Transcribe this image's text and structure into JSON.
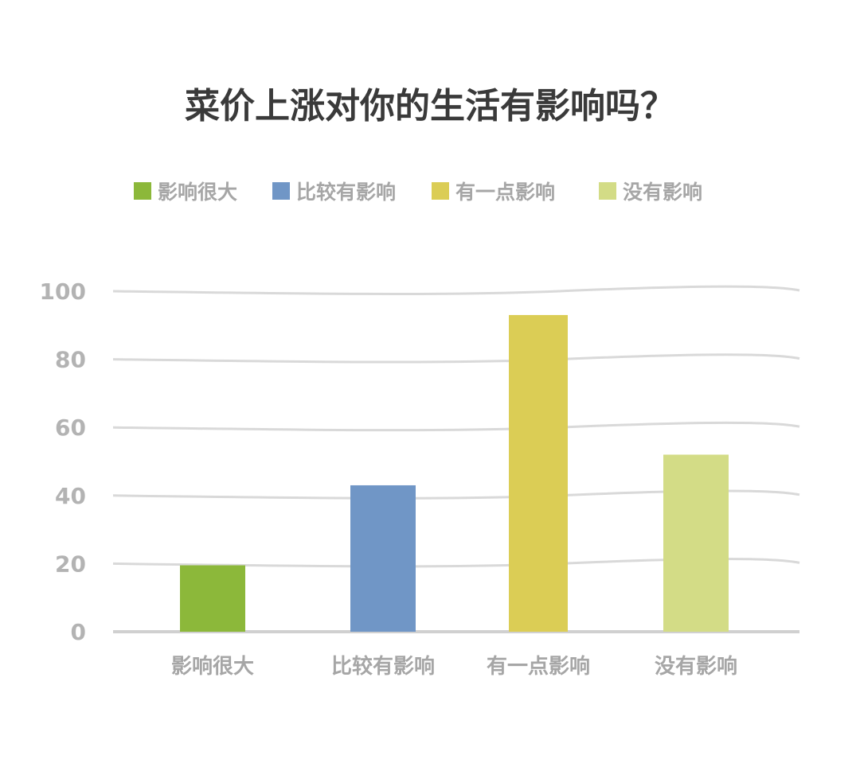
{
  "chart_data": {
    "type": "bar",
    "title": "菜价上涨对你的生活有影响吗？",
    "categories": [
      "影响很大",
      "比较有影响",
      "有一点影响",
      "没有影响"
    ],
    "values": [
      19.5,
      43,
      93,
      52
    ],
    "colors": [
      "#8cb83a",
      "#7096c6",
      "#dbcd55",
      "#d3dc86"
    ],
    "legend": {
      "placement": "top",
      "entries": [
        "影响很大",
        "比较有影响",
        "有一点影响",
        "没有影响"
      ]
    },
    "ylim": [
      0,
      100
    ],
    "yticks": [
      "0",
      "20",
      "40",
      "60",
      "80",
      "100"
    ],
    "grid": true,
    "xlabel": "",
    "ylabel": ""
  }
}
